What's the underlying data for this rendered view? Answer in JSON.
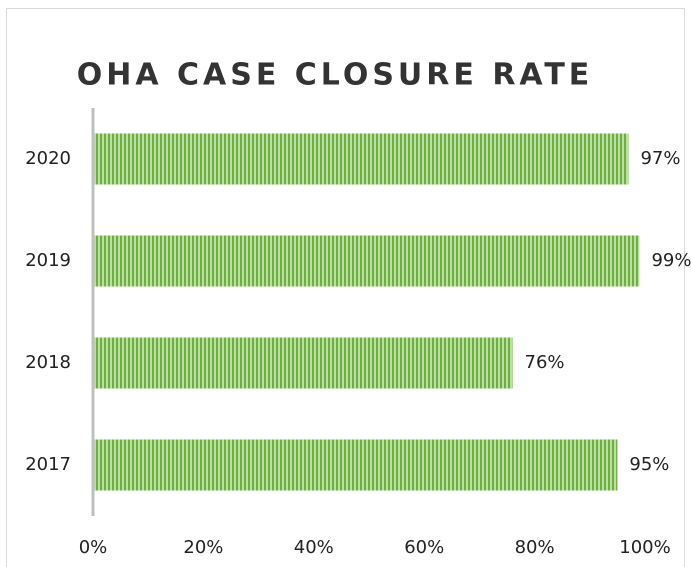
{
  "chart_data": {
    "type": "bar",
    "orientation": "horizontal",
    "title": "OHA CASE CLOSURE RATE",
    "categories": [
      "2020",
      "2019",
      "2018",
      "2017"
    ],
    "values": [
      97,
      99,
      76,
      95
    ],
    "value_labels": [
      "97%",
      "99%",
      "76%",
      "95%"
    ],
    "color": "#70ad47",
    "xlim": [
      0,
      100
    ],
    "xticks": [
      {
        "value": 0,
        "label": "0%"
      },
      {
        "value": 20,
        "label": "20%"
      },
      {
        "value": 40,
        "label": "40%"
      },
      {
        "value": 60,
        "label": "60%"
      },
      {
        "value": 80,
        "label": "80%"
      },
      {
        "value": 100,
        "label": "100%"
      }
    ],
    "grid": false
  }
}
